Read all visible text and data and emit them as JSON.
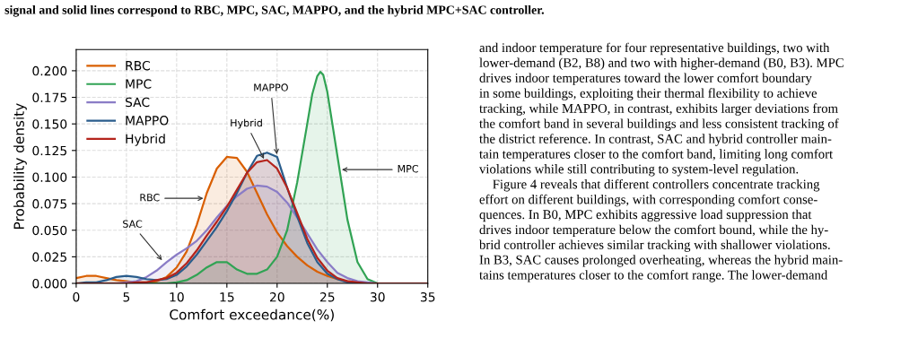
{
  "chart_data": {
    "type": "area",
    "title": "signal and solid lines correspond to RBC, MPC, SAC, MAPPO, and the hybrid MPC+SAC controller.",
    "xlabel": "Comfort exceedance(%)",
    "ylabel": "Probability density",
    "x": [
      0,
      1,
      2,
      3,
      4,
      5,
      6,
      7,
      8,
      9,
      10,
      11,
      12,
      13,
      14,
      15,
      16,
      17,
      18,
      19,
      20,
      21,
      22,
      23,
      24,
      25,
      26,
      27,
      28,
      29,
      30,
      31,
      32,
      33,
      34,
      35
    ],
    "series": [
      {
        "name": "RBC",
        "color": "#d95f02",
        "values": [
          0.005,
          0.007,
          0.007,
          0.005,
          0.003,
          0.002,
          0.001,
          0.001,
          0.002,
          0.006,
          0.015,
          0.03,
          0.055,
          0.085,
          0.108,
          0.119,
          0.118,
          0.105,
          0.085,
          0.065,
          0.048,
          0.035,
          0.025,
          0.017,
          0.011,
          0.007,
          0.004,
          0.002,
          0.001,
          0,
          0,
          0,
          0,
          0,
          0,
          0
        ]
      },
      {
        "name": "MPC",
        "color": "#31a354",
        "x": [
          0,
          1,
          2,
          3,
          4,
          5,
          6,
          7,
          8,
          9,
          10,
          11,
          12,
          13,
          14,
          15,
          16,
          17,
          18,
          19,
          20,
          21,
          22,
          23,
          23.5,
          24,
          24.3,
          24.6,
          25,
          25.5,
          26,
          27,
          28,
          29,
          30,
          31,
          32,
          33,
          34,
          35
        ],
        "values": [
          0,
          0,
          0,
          0,
          0,
          0,
          0,
          0,
          0,
          0,
          0.001,
          0.003,
          0.008,
          0.015,
          0.02,
          0.02,
          0.013,
          0.009,
          0.009,
          0.013,
          0.025,
          0.05,
          0.095,
          0.15,
          0.178,
          0.195,
          0.199,
          0.196,
          0.18,
          0.15,
          0.12,
          0.06,
          0.02,
          0.004,
          0,
          0,
          0,
          0,
          0,
          0
        ]
      },
      {
        "name": "SAC",
        "color": "#8a7cc6",
        "values": [
          0,
          0,
          0,
          0,
          0,
          0.001,
          0.002,
          0.006,
          0.012,
          0.02,
          0.027,
          0.033,
          0.04,
          0.05,
          0.062,
          0.073,
          0.082,
          0.089,
          0.092,
          0.091,
          0.086,
          0.076,
          0.062,
          0.047,
          0.032,
          0.02,
          0.01,
          0.005,
          0.002,
          0.001,
          0,
          0,
          0,
          0,
          0,
          0
        ]
      },
      {
        "name": "MAPPO",
        "color": "#2a5d8c",
        "values": [
          0,
          0.001,
          0.001,
          0.003,
          0.006,
          0.007,
          0.006,
          0.004,
          0.003,
          0.004,
          0.008,
          0.016,
          0.027,
          0.04,
          0.053,
          0.068,
          0.085,
          0.104,
          0.12,
          0.123,
          0.119,
          0.09,
          0.063,
          0.038,
          0.02,
          0.009,
          0.004,
          0.001,
          0,
          0,
          0,
          0,
          0,
          0,
          0,
          0
        ]
      },
      {
        "name": "Hybrid",
        "color": "#b5241c",
        "values": [
          0,
          0,
          0,
          0,
          0,
          0,
          0.001,
          0.001,
          0.003,
          0.005,
          0.01,
          0.019,
          0.031,
          0.045,
          0.058,
          0.072,
          0.088,
          0.104,
          0.114,
          0.116,
          0.108,
          0.09,
          0.066,
          0.042,
          0.024,
          0.012,
          0.005,
          0.002,
          0.001,
          0,
          0,
          0,
          0,
          0,
          0,
          0
        ]
      }
    ],
    "xlim": [
      0,
      35
    ],
    "xticks": [
      0,
      5,
      10,
      15,
      20,
      25,
      30,
      35
    ],
    "ylim": [
      0,
      0.22
    ],
    "yticks": [
      {
        "value": 0,
        "label": "0.000"
      },
      {
        "value": 0.025,
        "label": "0.025"
      },
      {
        "value": 0.05,
        "label": "0.050"
      },
      {
        "value": 0.075,
        "label": "0.075"
      },
      {
        "value": 0.1,
        "label": "0.100"
      },
      {
        "value": 0.125,
        "label": "0.125"
      },
      {
        "value": 0.15,
        "label": "0.150"
      },
      {
        "value": 0.175,
        "label": "0.175"
      },
      {
        "value": 0.2,
        "label": "0.200"
      }
    ],
    "grid": true,
    "legend": "top left",
    "annotations": [
      {
        "text": "RBC",
        "x": 12.9,
        "y": 0.08
      },
      {
        "text": "SAC",
        "x": 8.7,
        "y": 0.02
      },
      {
        "text": "Hybrid",
        "x": 18.8,
        "y": 0.115
      },
      {
        "text": "MAPPO",
        "x": 20,
        "y": 0.119
      },
      {
        "text": "MPC",
        "x": 26.2,
        "y": 0.107
      },
      "and indoor temperature for four representative buildings, two with\nlower-demand (B2, B8) and two with higher-demand (B0, B3). MPC\ndrives indoor temperatures toward the lower comfort boundary\nin some buildings, exploiting their thermal flexibility to achieve\ntracking, while MAPPO, in contrast, exhibits larger deviations from\nthe comfort band in several buildings and less consistent tracking of\nthe district reference. In contrast, SAC and hybrid controller main-\ntain temperatures closer to the comfort band, limiting long comfort\nviolations while still contributing to system-level regulation.\n    Figure 4 reveals that different controllers concentrate tracking\neffort on different buildings, with corresponding comfort conse-\nquences. In B0, MPC exhibits aggressive load suppression that\ndrives indoor temperature below the comfort bound, while the hy-\nbrid controller achieves similar tracking with shallower violations.\nIn B3, SAC causes prolonged overheating, whereas the hybrid main-\ntains temperatures closer to the comfort range. The lower-demand"
    ]
  }
}
